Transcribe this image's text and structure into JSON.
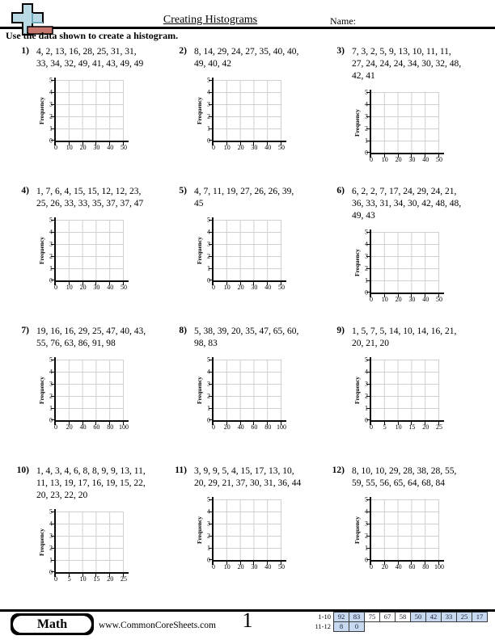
{
  "header": {
    "title": "Creating Histograms",
    "name_label": "Name:",
    "instruction": "Use the data shown to create a histogram.",
    "logo_icon": "plus-cross-eraser-logo",
    "logo_colors": {
      "cross": "#b9d9e4",
      "eraser": "#c5776e",
      "outline": "#000000"
    }
  },
  "chart_defaults": {
    "y_label": "Frequency",
    "y_ticks": [
      "5",
      "4",
      "3",
      "2",
      "1",
      "0"
    ],
    "grid_color": "#cfcfcf"
  },
  "problems": [
    {
      "number": "1)",
      "data_lines": [
        "4, 2, 13, 16, 28, 25, 31, 31,",
        "33, 34, 32, 49, 41, 43, 49, 49"
      ],
      "x_ticks": [
        "0",
        "10",
        "20",
        "30",
        "40",
        "50"
      ]
    },
    {
      "number": "2)",
      "data_lines": [
        "8, 14, 29, 24, 27, 35, 40, 40,",
        "49, 40, 42"
      ],
      "x_ticks": [
        "0",
        "10",
        "20",
        "30",
        "40",
        "50"
      ]
    },
    {
      "number": "3)",
      "data_lines": [
        "7, 3, 2, 5, 9, 13, 10, 11, 11,",
        "27, 24, 24, 24, 34, 30, 32, 48,",
        "42, 41"
      ],
      "x_ticks": [
        "0",
        "10",
        "20",
        "30",
        "40",
        "50"
      ]
    },
    {
      "number": "4)",
      "data_lines": [
        "1, 7, 6, 4, 15, 15, 12, 12, 23,",
        "25, 26, 33, 33, 35, 37, 37, 47"
      ],
      "x_ticks": [
        "0",
        "10",
        "20",
        "30",
        "40",
        "50"
      ]
    },
    {
      "number": "5)",
      "data_lines": [
        "4, 7, 11, 19, 27, 26, 26, 39,",
        "45"
      ],
      "x_ticks": [
        "0",
        "10",
        "20",
        "30",
        "40",
        "50"
      ]
    },
    {
      "number": "6)",
      "data_lines": [
        "6, 2, 2, 7, 17, 24, 29, 24, 21,",
        "36, 33, 31, 34, 30, 42, 48, 48,",
        "49, 43"
      ],
      "x_ticks": [
        "0",
        "10",
        "20",
        "30",
        "40",
        "50"
      ]
    },
    {
      "number": "7)",
      "data_lines": [
        "19, 16, 16, 29, 25, 47, 40, 43,",
        "55, 76, 63, 86, 91, 98"
      ],
      "x_ticks": [
        "0",
        "20",
        "40",
        "60",
        "80",
        "100"
      ]
    },
    {
      "number": "8)",
      "data_lines": [
        "5, 38, 39, 20, 35, 47, 65, 60,",
        "98, 83"
      ],
      "x_ticks": [
        "0",
        "20",
        "40",
        "60",
        "80",
        "100"
      ]
    },
    {
      "number": "9)",
      "data_lines": [
        "1, 5, 7, 5, 14, 10, 14, 16, 21,",
        "20, 21, 20"
      ],
      "x_ticks": [
        "0",
        "5",
        "10",
        "15",
        "20",
        "25"
      ]
    },
    {
      "number": "10)",
      "data_lines": [
        "1, 4, 3, 4, 6, 8, 8, 9, 9, 13, 11,",
        "11, 13, 19, 17, 16, 19, 15, 22,",
        "20, 23, 22, 20"
      ],
      "x_ticks": [
        "0",
        "5",
        "10",
        "15",
        "20",
        "25"
      ]
    },
    {
      "number": "11)",
      "data_lines": [
        "3, 9, 9, 5, 4, 15, 17, 13, 10,",
        "20, 29, 21, 37, 30, 31, 36, 44"
      ],
      "x_ticks": [
        "0",
        "10",
        "20",
        "30",
        "40",
        "50"
      ]
    },
    {
      "number": "12)",
      "data_lines": [
        "8, 10, 10, 29, 28, 38, 28, 55,",
        "59, 55, 56, 65, 64, 68, 84"
      ],
      "x_ticks": [
        "0",
        "20",
        "40",
        "60",
        "80",
        "100"
      ]
    }
  ],
  "footer": {
    "brand": "Math",
    "website": "www.CommonCoreSheets.com",
    "page_number": "1",
    "score_table": {
      "highlight_color": "#c6d9f0",
      "rows": [
        {
          "label": "1-10",
          "cells": [
            {
              "value": "92",
              "highlight": true
            },
            {
              "value": "83",
              "highlight": true
            },
            {
              "value": "75",
              "highlight": false
            },
            {
              "value": "67",
              "highlight": false
            },
            {
              "value": "58",
              "highlight": false
            },
            {
              "value": "50",
              "highlight": true
            },
            {
              "value": "42",
              "highlight": true
            },
            {
              "value": "33",
              "highlight": true
            },
            {
              "value": "25",
              "highlight": true
            },
            {
              "value": "17",
              "highlight": true
            }
          ]
        },
        {
          "label": "11-12",
          "cells": [
            {
              "value": "8",
              "highlight": true
            },
            {
              "value": "0",
              "highlight": true
            }
          ]
        }
      ]
    }
  }
}
